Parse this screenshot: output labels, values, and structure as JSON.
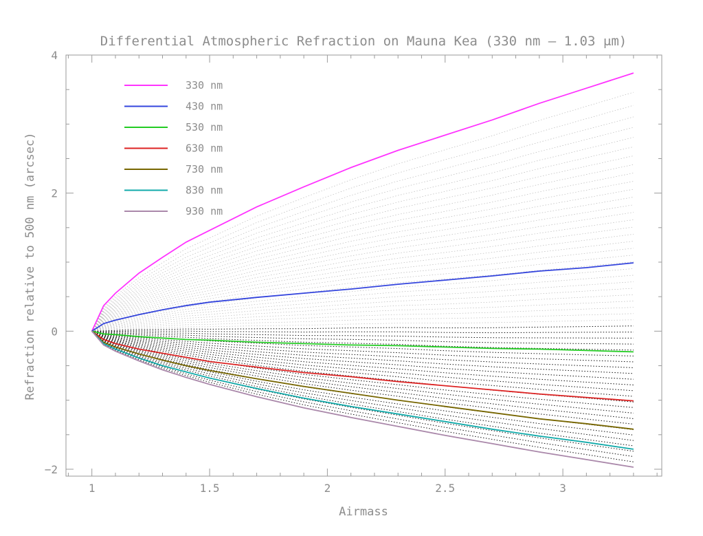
{
  "chart_data": {
    "type": "line",
    "title": "Differential Atmospheric Refraction on Mauna Kea (330 nm – 1.03 μm)",
    "xlabel": "Airmass",
    "ylabel": "Refraction relative to 500 nm (arcsec)",
    "xlim": [
      0.89,
      3.42
    ],
    "ylim": [
      -2.1,
      4.0
    ],
    "xticks": [
      1,
      1.5,
      2,
      2.5,
      3
    ],
    "xtick_labels": [
      "1",
      "1.5",
      "2",
      "2.5",
      "3"
    ],
    "yticks": [
      -2,
      0,
      2,
      4
    ],
    "ytick_labels": [
      "−2",
      "0",
      "2",
      "4"
    ],
    "legend_position": "top-left",
    "grid": false,
    "x": [
      1.0,
      1.05,
      1.1,
      1.2,
      1.3,
      1.4,
      1.5,
      1.7,
      1.9,
      2.1,
      2.3,
      2.5,
      2.7,
      2.9,
      3.1,
      3.3
    ],
    "series": [
      {
        "name": "330 nm",
        "color": "#ff33ff",
        "values": [
          0.0,
          0.37,
          0.55,
          0.84,
          1.07,
          1.29,
          1.46,
          1.8,
          2.09,
          2.37,
          2.62,
          2.84,
          3.06,
          3.3,
          3.52,
          3.74
        ]
      },
      {
        "name": "430 nm",
        "color": "#3344dd",
        "values": [
          0.0,
          0.11,
          0.16,
          0.24,
          0.31,
          0.37,
          0.42,
          0.49,
          0.55,
          0.61,
          0.68,
          0.74,
          0.8,
          0.87,
          0.92,
          0.99
        ]
      },
      {
        "name": "530 nm",
        "color": "#22cc22",
        "values": [
          0.0,
          -0.04,
          -0.05,
          -0.08,
          -0.1,
          -0.12,
          -0.13,
          -0.16,
          -0.18,
          -0.2,
          -0.21,
          -0.23,
          -0.25,
          -0.26,
          -0.28,
          -0.3
        ]
      },
      {
        "name": "630 nm",
        "color": "#dd2222",
        "values": [
          0.0,
          -0.12,
          -0.18,
          -0.26,
          -0.32,
          -0.38,
          -0.44,
          -0.52,
          -0.6,
          -0.66,
          -0.73,
          -0.79,
          -0.85,
          -0.91,
          -0.96,
          -1.01
        ]
      },
      {
        "name": "730 nm",
        "color": "#776600",
        "values": [
          0.0,
          -0.16,
          -0.23,
          -0.33,
          -0.42,
          -0.5,
          -0.57,
          -0.69,
          -0.8,
          -0.9,
          -1.0,
          -1.09,
          -1.18,
          -1.27,
          -1.34,
          -1.42
        ]
      },
      {
        "name": "830 nm",
        "color": "#11aaaa",
        "values": [
          0.0,
          -0.18,
          -0.26,
          -0.39,
          -0.5,
          -0.59,
          -0.68,
          -0.83,
          -0.97,
          -1.09,
          -1.2,
          -1.31,
          -1.42,
          -1.52,
          -1.61,
          -1.71
        ]
      },
      {
        "name": "930 nm",
        "color": "#aa88aa",
        "values": [
          0.0,
          -0.2,
          -0.29,
          -0.43,
          -0.56,
          -0.67,
          -0.77,
          -0.95,
          -1.11,
          -1.25,
          -1.38,
          -1.51,
          -1.63,
          -1.75,
          -1.86,
          -1.97
        ]
      }
    ],
    "background_curves": {
      "description_of_fill": "dense family of curves between 330 nm and 1.03 μm",
      "upper_color": "#b8b8b8",
      "lower_color": "#111111"
    }
  }
}
